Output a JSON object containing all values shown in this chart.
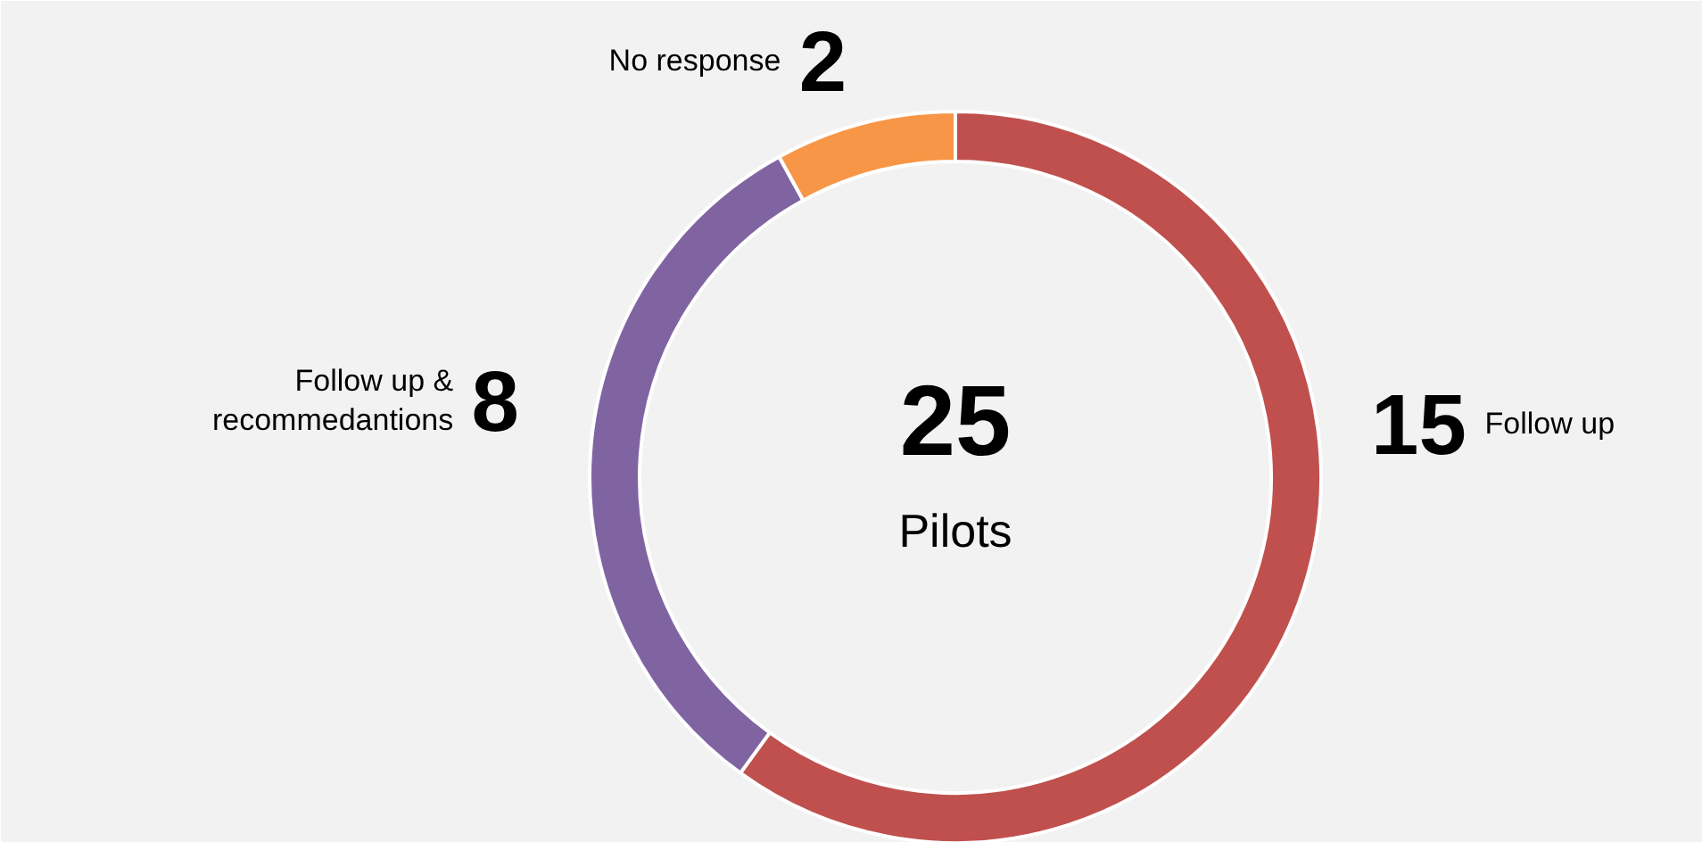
{
  "chart_data": {
    "type": "donut",
    "title": "25",
    "subtitle": "Pilots",
    "categories": [
      "Follow up",
      "Follow up & recommedantions",
      "No response"
    ],
    "values": [
      15,
      8,
      2
    ],
    "colors": [
      "#c0504d",
      "#8064a2",
      "#f79646"
    ],
    "data_labels": true
  }
}
